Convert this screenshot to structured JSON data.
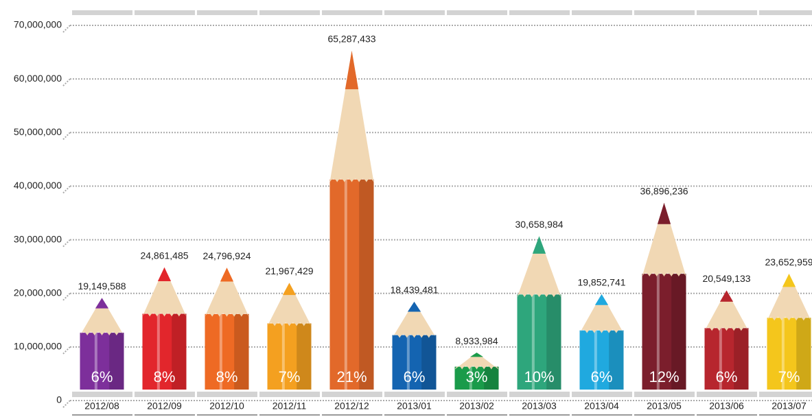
{
  "chart_data": {
    "type": "pencil-bar",
    "categories": [
      "2012/08",
      "2012/09",
      "2012/10",
      "2012/11",
      "2012/12",
      "2013/01",
      "2013/02",
      "2013/03",
      "2013/04",
      "2013/05",
      "2013/06",
      "2013/07"
    ],
    "values": [
      19149588,
      24861485,
      24796924,
      21967429,
      65287433,
      18439481,
      8933984,
      30658984,
      19852741,
      36896236,
      20549133,
      23652959
    ],
    "value_labels": [
      "19,149,588",
      "24,861,485",
      "24,796,924",
      "21,967,429",
      "65,287,433",
      "18,439,481",
      "8,933,984",
      "30,658,984",
      "19,852,741",
      "36,896,236",
      "20,549,133",
      "23,652,959"
    ],
    "shares": [
      6,
      8,
      8,
      7,
      21,
      6,
      3,
      10,
      6,
      12,
      6,
      7
    ],
    "share_labels": [
      "6%",
      "8%",
      "8%",
      "7%",
      "21%",
      "6%",
      "3%",
      "10%",
      "6%",
      "12%",
      "6%",
      "7%"
    ],
    "colors": [
      "#7d2f9b",
      "#e2262c",
      "#ee6a24",
      "#f4a020",
      "#e2692a",
      "#1464b1",
      "#1a9b4a",
      "#2ea67c",
      "#20a9df",
      "#7b1e2c",
      "#b7262e",
      "#f4c61c"
    ],
    "ylim": [
      0,
      70000000
    ],
    "yticks": [
      0,
      {
        "value": 10000000,
        "label": "10,000,000"
      },
      {
        "value": 20000000,
        "label": "20,000,000"
      },
      {
        "value": 30000000,
        "label": "30,000,000"
      },
      {
        "value": 40000000,
        "label": "40,000,000"
      },
      {
        "value": 50000000,
        "label": "50,000,000"
      },
      {
        "value": 60000000,
        "label": "60,000,000"
      },
      {
        "value": 70000000,
        "label": "70,000,000"
      }
    ],
    "grid": true
  }
}
